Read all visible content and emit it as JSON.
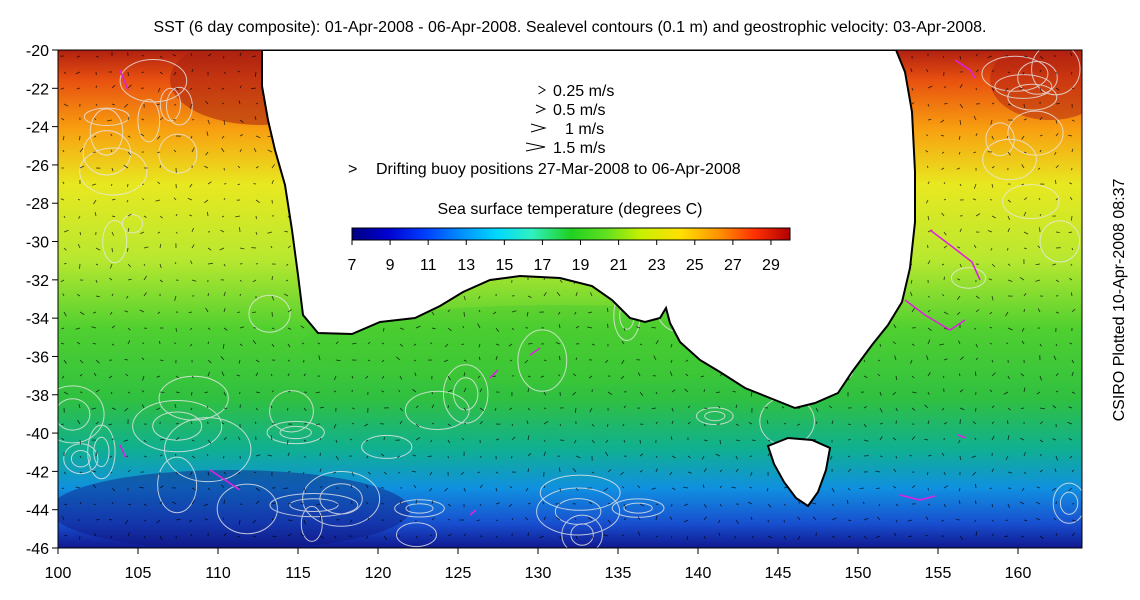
{
  "title": "SST (6 day composite): 01-Apr-2008 - 06-Apr-2008. Sealevel contours (0.1 m) and geostrophic velocity: 03-Apr-2008.",
  "credit": "CSIRO Plotted 10-Apr-2008 08:37",
  "map": {
    "lon_range": [
      100,
      164
    ],
    "lat_range": [
      -46,
      -20
    ],
    "x_ticks": [
      "100",
      "105",
      "110",
      "115",
      "120",
      "125",
      "130",
      "135",
      "140",
      "145",
      "150",
      "155",
      "160"
    ],
    "y_ticks": [
      "-20",
      "-22",
      "-24",
      "-26",
      "-28",
      "-30",
      "-32",
      "-34",
      "-36",
      "-38",
      "-40",
      "-42",
      "-44",
      "-46"
    ]
  },
  "velocity_legend": [
    {
      "label": "0.25 m/s",
      "speed": 0.25
    },
    {
      "label": "0.5 m/s",
      "speed": 0.5
    },
    {
      "label": "1 m/s",
      "speed": 1
    },
    {
      "label": "1.5 m/s",
      "speed": 1.5
    }
  ],
  "buoy_legend": {
    "symbol": ">",
    "label": "Drifting buoy positions 27-Mar-2008 to 06-Apr-2008",
    "color": "#e020e0"
  },
  "colorbar": {
    "title": "Sea surface temperature (degrees C)",
    "range": [
      7,
      30
    ],
    "ticks": [
      "7",
      "9",
      "11",
      "13",
      "15",
      "17",
      "19",
      "21",
      "23",
      "25",
      "27",
      "29"
    ],
    "colors": [
      "#00007f",
      "#0000d0",
      "#0040ff",
      "#0090ff",
      "#00d8ff",
      "#30f0c0",
      "#20d020",
      "#60e020",
      "#c8f000",
      "#ffe000",
      "#ff9000",
      "#ff3000",
      "#b00000"
    ]
  },
  "colors": {
    "land": "#ffffff",
    "coastline": "#000000",
    "contour": "#e8e8e8",
    "vector": "#000000"
  }
}
